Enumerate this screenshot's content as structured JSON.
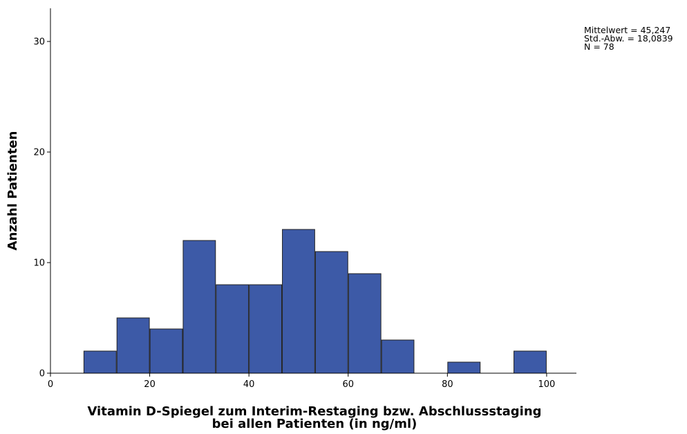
{
  "chart_data": {
    "type": "bar",
    "subtype": "histogram",
    "bin_width": 6.67,
    "bins": [
      {
        "from": 6.67,
        "to": 13.33,
        "count": 2
      },
      {
        "from": 13.33,
        "to": 20.0,
        "count": 5
      },
      {
        "from": 20.0,
        "to": 26.67,
        "count": 4
      },
      {
        "from": 26.67,
        "to": 33.33,
        "count": 12
      },
      {
        "from": 33.33,
        "to": 40.0,
        "count": 8
      },
      {
        "from": 40.0,
        "to": 46.67,
        "count": 8
      },
      {
        "from": 46.67,
        "to": 53.33,
        "count": 13
      },
      {
        "from": 53.33,
        "to": 60.0,
        "count": 11
      },
      {
        "from": 60.0,
        "to": 66.67,
        "count": 9
      },
      {
        "from": 66.67,
        "to": 73.33,
        "count": 3
      },
      {
        "from": 80.0,
        "to": 86.67,
        "count": 1
      },
      {
        "from": 93.33,
        "to": 100.0,
        "count": 2
      }
    ],
    "xlim": [
      0,
      106
    ],
    "ylim": [
      0,
      33
    ],
    "x_ticks": [
      0,
      20,
      40,
      60,
      80,
      100
    ],
    "y_ticks": [
      0,
      10,
      20,
      30
    ],
    "xlabel_lines": [
      "Vitamin D-Spiegel zum Interim-Restaging bzw. Abschlussstaging",
      "bei allen Patienten (in ng/ml)"
    ],
    "ylabel": "Anzahl Patienten",
    "stats": {
      "mean": "Mittelwert = 45,247",
      "sd": "Std.-Abw. = 18,0839",
      "n": "N = 78"
    },
    "colors": {
      "bar_fill": "#3d5aa7",
      "bar_stroke": "#222222",
      "axis": "#000000"
    },
    "grid": false
  }
}
